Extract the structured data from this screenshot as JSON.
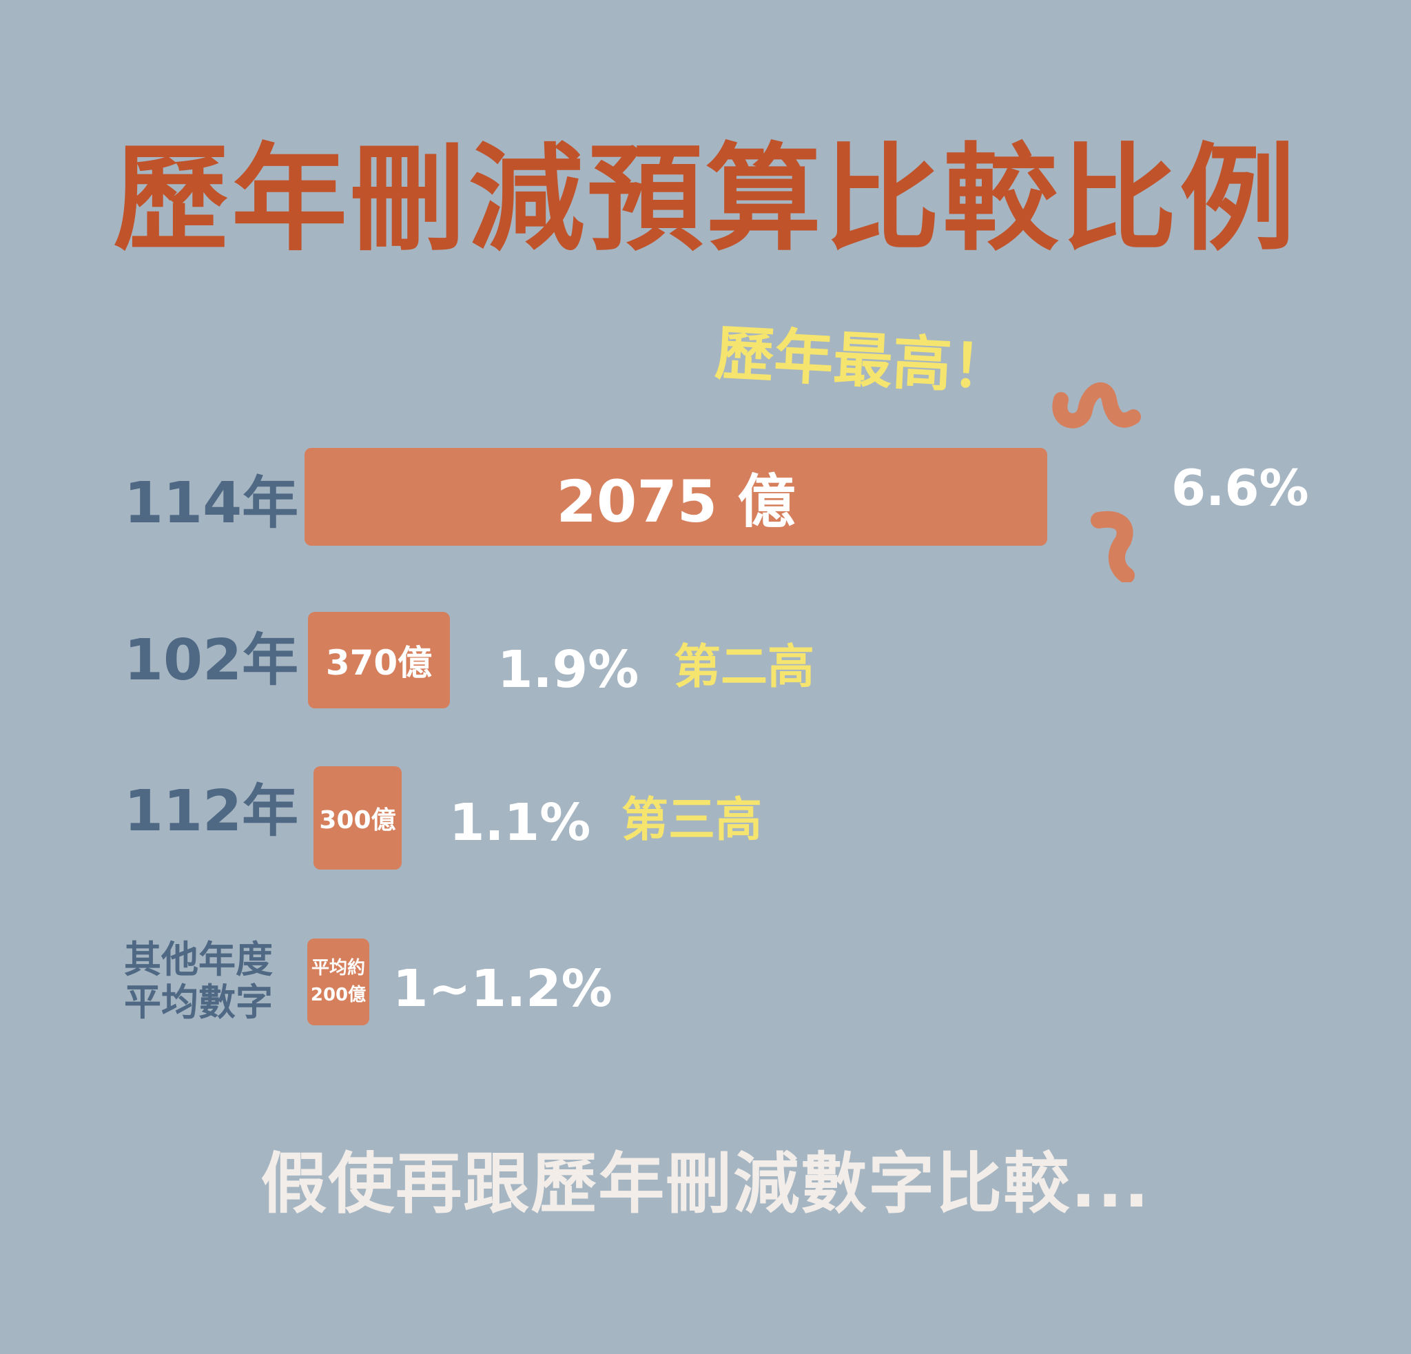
{
  "title": "歷年刪減預算比較比例",
  "callout": "歷年最高！",
  "colors": {
    "background": "#a6b5c2",
    "title": "#c1532b",
    "bar": "#d67f5c",
    "year_label": "#4f6984",
    "highlight": "#f5e46d",
    "percent": "#ffffff"
  },
  "chart_data": {
    "type": "bar",
    "orientation": "horizontal",
    "unit": "億",
    "categories": [
      "114年",
      "102年",
      "112年",
      "其他年度平均數字"
    ],
    "values": [
      2075,
      370,
      300,
      200
    ],
    "bar_labels": [
      "2075 億",
      "370億",
      "300億",
      "平均約200億"
    ],
    "percentages": [
      "6.6%",
      "1.9%",
      "1.1%",
      "1~1.2%"
    ],
    "rank_labels": [
      "",
      "第二高",
      "第三高",
      ""
    ]
  },
  "rows": [
    {
      "year": "114年",
      "bar_label": "2075 億",
      "percent": "6.6%",
      "rank": ""
    },
    {
      "year": "102年",
      "bar_label": "370億",
      "percent": "1.9%",
      "rank": "第二高"
    },
    {
      "year": "112年",
      "bar_label": "300億",
      "percent": "1.1%",
      "rank": "第三高"
    },
    {
      "year_line1": "其他年度",
      "year_line2": "平均數字",
      "bar_label_line1": "平均約",
      "bar_label_line2": "200億",
      "percent": "1~1.2%"
    }
  ],
  "footer": "假使再跟歷年刪減數字比較..."
}
